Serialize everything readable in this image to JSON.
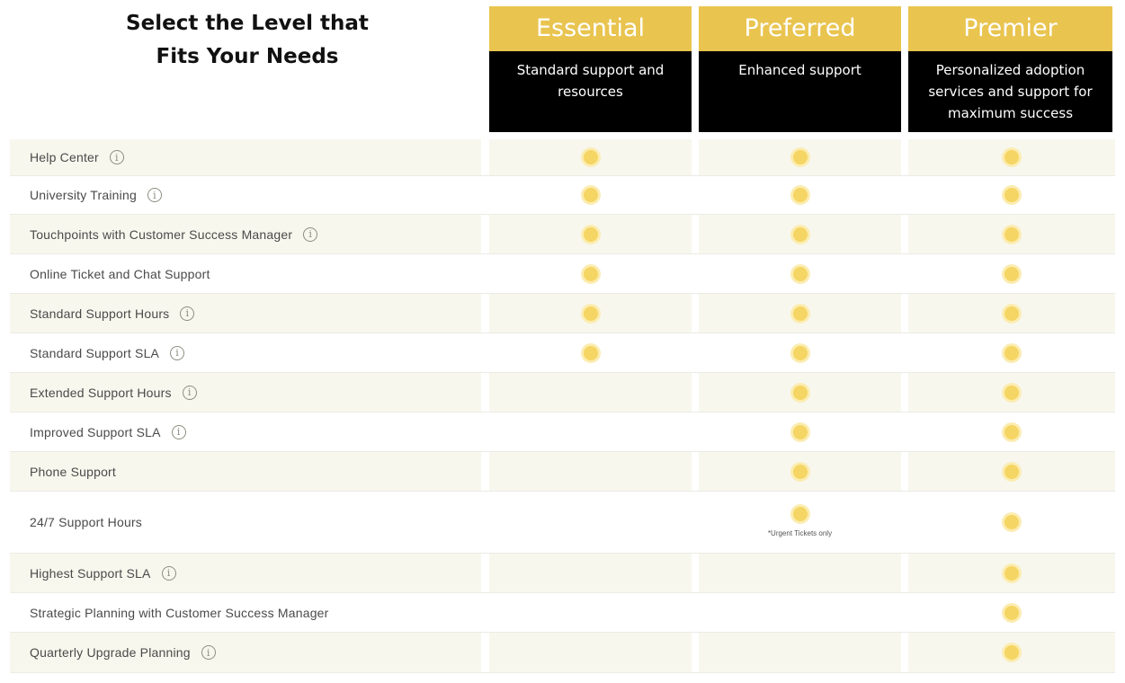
{
  "heading": {
    "line1": "Select the Level that",
    "line2": "Fits Your Needs"
  },
  "tiers": [
    {
      "name": "Essential",
      "description": "Standard support and resources"
    },
    {
      "name": "Preferred",
      "description": "Enhanced support"
    },
    {
      "name": "Premier",
      "description": "Personalized adoption services and support for maximum success"
    }
  ],
  "features": [
    {
      "label": "Help Center",
      "info": true,
      "essential": true,
      "preferred": true,
      "premier": true
    },
    {
      "label": "University Training",
      "info": true,
      "essential": true,
      "preferred": true,
      "premier": true
    },
    {
      "label": "Touchpoints with Customer Success Manager",
      "info": true,
      "essential": true,
      "preferred": true,
      "premier": true
    },
    {
      "label": "Online Ticket and Chat Support",
      "info": false,
      "essential": true,
      "preferred": true,
      "premier": true
    },
    {
      "label": "Standard Support Hours",
      "info": true,
      "essential": true,
      "preferred": true,
      "premier": true
    },
    {
      "label": "Standard Support SLA",
      "info": true,
      "essential": true,
      "preferred": true,
      "premier": true
    },
    {
      "label": "Extended Support Hours",
      "info": true,
      "essential": false,
      "preferred": true,
      "premier": true
    },
    {
      "label": "Improved Support SLA",
      "info": true,
      "essential": false,
      "preferred": true,
      "premier": true
    },
    {
      "label": "Phone Support",
      "info": false,
      "essential": false,
      "preferred": true,
      "premier": true
    },
    {
      "label": "24/7 Support Hours",
      "info": false,
      "essential": false,
      "preferred": true,
      "premier": true,
      "preferred_note": "*Urgent Tickets only"
    },
    {
      "label": "Highest Support SLA",
      "info": true,
      "essential": false,
      "preferred": false,
      "premier": true
    },
    {
      "label": "Strategic Planning with Customer Success Manager",
      "info": false,
      "essential": false,
      "preferred": false,
      "premier": true
    },
    {
      "label": "Quarterly Upgrade Planning",
      "info": true,
      "essential": false,
      "preferred": false,
      "premier": true
    }
  ],
  "icons": {
    "info": "info-icon",
    "included": "included-dot-icon"
  },
  "colors": {
    "accent": "#e9c44f",
    "dot": "#f5d563",
    "header_bg": "#000000",
    "row_alt": "#f8f7ee"
  }
}
